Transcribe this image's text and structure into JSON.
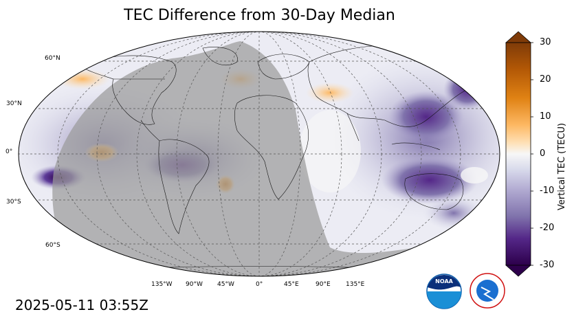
{
  "title": "TEC Difference from 30-Day Median",
  "timestamp": "2025-05-11 03:55Z",
  "lat_labels": [
    "60°N",
    "30°N",
    "0°",
    "30°S",
    "60°S"
  ],
  "lon_labels": [
    "135°W",
    "90°W",
    "45°W",
    "0°",
    "45°E",
    "90°E",
    "135°E"
  ],
  "colorbar": {
    "label": "Vertical TEC (TECU)",
    "ticks": [
      "30",
      "20",
      "10",
      "0",
      "-10",
      "-20",
      "-30"
    ],
    "range": [
      -30,
      30
    ],
    "colors": {
      "high": "#7f3b08",
      "mid": "#f7f7f7",
      "low": "#2d004b"
    }
  },
  "logos": [
    {
      "name": "noaa-logo",
      "text": "NOAA"
    },
    {
      "name": "nws-logo",
      "text": "NATIONAL WEATHER SERVICE"
    }
  ],
  "colors": {
    "night": "#9b9b9b",
    "purple": "#5e3c99",
    "orange": "#e08214"
  }
}
